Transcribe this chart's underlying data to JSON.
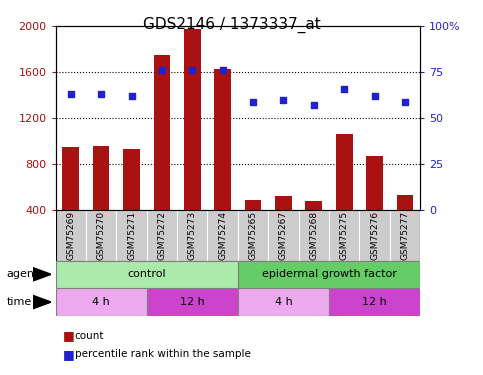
{
  "title": "GDS2146 / 1373337_at",
  "samples": [
    "GSM75269",
    "GSM75270",
    "GSM75271",
    "GSM75272",
    "GSM75273",
    "GSM75274",
    "GSM75265",
    "GSM75267",
    "GSM75268",
    "GSM75275",
    "GSM75276",
    "GSM75277"
  ],
  "counts": [
    950,
    960,
    930,
    1750,
    1980,
    1630,
    490,
    520,
    480,
    1060,
    870,
    530
  ],
  "percentiles": [
    63,
    63,
    62,
    76,
    76,
    76,
    59,
    60,
    57,
    66,
    62,
    59
  ],
  "bar_color": "#aa1111",
  "dot_color": "#2222cc",
  "ylim_left": [
    400,
    2000
  ],
  "ylim_right": [
    0,
    100
  ],
  "yticks_left": [
    400,
    800,
    1200,
    1600,
    2000
  ],
  "yticks_right": [
    0,
    25,
    50,
    75,
    100
  ],
  "grid_values": [
    800,
    1200,
    1600
  ],
  "control_color": "#aaeaaa",
  "egf_color": "#66cc66",
  "time_4h_color": "#eeaaee",
  "time_12h_color": "#cc44cc",
  "sample_bg_color": "#cccccc",
  "agent_label": "agent",
  "time_label": "time",
  "control_label": "control",
  "egf_label": "epidermal growth factor",
  "legend_count": "count",
  "legend_percentile": "percentile rank within the sample",
  "title_fontsize": 11,
  "tick_fontsize": 8,
  "sample_fontsize": 6.5,
  "label_fontsize": 8,
  "block_fontsize": 8
}
